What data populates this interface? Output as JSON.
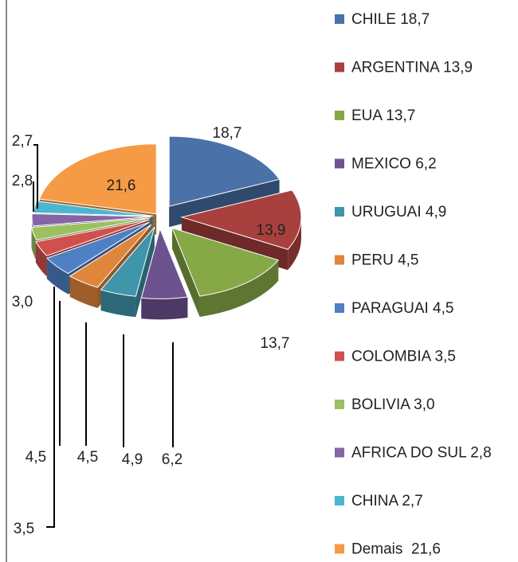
{
  "chart_data": {
    "type": "pie3d",
    "categories": [
      "CHILE 18,7",
      "ARGENTINA 13,9",
      "EUA 13,7",
      "MEXICO 6,2",
      "URUGUAI 4,9",
      "PERU 4,5",
      "PARAGUAI 4,5",
      "COLOMBIA 3,5",
      "BOLIVIA 3,0",
      "AFRICA DO SUL 2,8",
      "CHINA 2,7",
      "Demais  21,6"
    ],
    "values": [
      18.7,
      13.9,
      13.7,
      6.2,
      4.9,
      4.5,
      4.5,
      3.5,
      3.0,
      2.8,
      2.7,
      21.6
    ],
    "value_labels": [
      "18,7",
      "13,9",
      "13,7",
      "6,2",
      "4,9",
      "4,5",
      "4,5",
      "3,5",
      "3,0",
      "2,8",
      "2,7",
      "21,6"
    ],
    "colors": [
      "#4a72a8",
      "#a8403d",
      "#86a846",
      "#6d5290",
      "#3f95aa",
      "#e0863c",
      "#4f7fc4",
      "#d0504e",
      "#9cc060",
      "#8565a5",
      "#4ab6cf",
      "#f59a45"
    ],
    "legend": "right"
  }
}
